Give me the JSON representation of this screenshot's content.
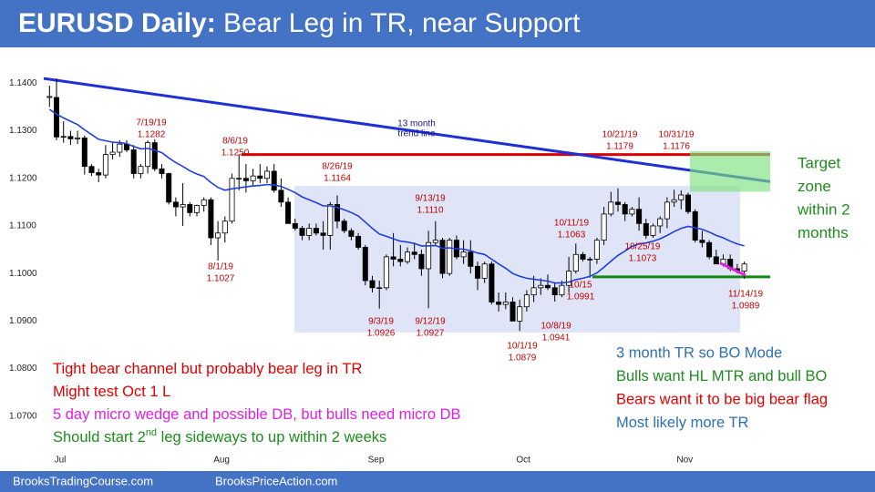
{
  "chart_data": {
    "type": "candlestick",
    "title": {
      "bold": "EURUSD Daily:",
      "rest": " Bear Leg in TR, near Support"
    },
    "footer": [
      "BrooksTradingCourse.com",
      "BrooksPriceAction.com"
    ],
    "categories": [
      null,
      "Jul",
      null,
      null,
      null,
      null,
      null,
      null,
      null,
      null,
      null,
      null,
      null,
      null,
      null,
      null,
      null,
      null,
      null,
      null,
      null,
      null,
      null,
      null,
      "Aug",
      null,
      null,
      null,
      null,
      null,
      null,
      null,
      null,
      null,
      null,
      null,
      null,
      null,
      null,
      null,
      null,
      null,
      null,
      null,
      null,
      null,
      "Sep",
      null,
      null,
      null,
      null,
      null,
      null,
      null,
      null,
      null,
      null,
      null,
      null,
      null,
      null,
      null,
      null,
      null,
      null,
      null,
      null,
      "Oct",
      null,
      null,
      null,
      null,
      null,
      null,
      null,
      null,
      null,
      null,
      null,
      null,
      null,
      null,
      null,
      null,
      null,
      null,
      null,
      null,
      null,
      null,
      "Nov",
      null,
      null,
      null,
      null,
      null,
      null,
      null,
      null,
      null
    ],
    "ohlc": {
      "open": [
        1.137,
        1.137,
        1.1287,
        1.1288,
        1.1283,
        1.1285,
        1.1225,
        1.1212,
        1.1207,
        1.125,
        1.1255,
        1.1272,
        1.126,
        1.121,
        1.1225,
        1.1275,
        1.122,
        1.121,
        1.115,
        1.114,
        1.1145,
        1.1128,
        1.1143,
        1.1155,
        1.1075,
        1.1085,
        1.111,
        1.12,
        1.12,
        1.1195,
        1.1205,
        1.12,
        1.1215,
        1.1175,
        1.115,
        1.1105,
        1.1095,
        1.108,
        1.1095,
        1.1085,
        1.108,
        1.1145,
        1.111,
        1.109,
        1.1078,
        1.1055,
        1.0985,
        1.097,
        1.097,
        1.1035,
        1.103,
        1.1025,
        1.1045,
        1.104,
        1.101,
        1.1065,
        1.107,
        1.1,
        1.107,
        1.1035,
        1.1045,
        1.1015,
        1.099,
        1.102,
        1.094,
        1.0935,
        1.094,
        1.09,
        1.093,
        1.0955,
        1.097,
        1.0975,
        1.097,
        1.0955,
        1.0975,
        1.1005,
        1.104,
        1.103,
        1.103,
        1.107,
        1.1125,
        1.115,
        1.1145,
        1.1125,
        1.1135,
        1.1105,
        1.108,
        1.11,
        1.1115,
        1.115,
        1.1155,
        1.1165,
        1.113,
        1.107,
        1.1065,
        1.1035,
        1.102,
        1.103,
        1.101,
        1.1005
      ],
      "high": [
        1.1395,
        1.141,
        1.132,
        1.13,
        1.13,
        1.129,
        1.123,
        1.122,
        1.127,
        1.1275,
        1.128,
        1.128,
        1.127,
        1.123,
        1.128,
        1.1282,
        1.123,
        1.1212,
        1.116,
        1.119,
        1.115,
        1.1145,
        1.116,
        1.116,
        1.111,
        1.112,
        1.121,
        1.125,
        1.123,
        1.122,
        1.123,
        1.1225,
        1.123,
        1.12,
        1.116,
        1.1115,
        1.11,
        1.1105,
        1.1105,
        1.111,
        1.115,
        1.1164,
        1.1115,
        1.1095,
        1.1085,
        1.106,
        1.0995,
        1.0985,
        1.104,
        1.1085,
        1.106,
        1.1055,
        1.1065,
        1.105,
        1.109,
        1.111,
        1.1075,
        1.1075,
        1.108,
        1.107,
        1.107,
        1.1025,
        1.1025,
        1.1025,
        1.096,
        1.096,
        1.095,
        1.0945,
        1.0965,
        1.0995,
        1.099,
        1.0998,
        1.098,
        1.0985,
        1.1035,
        1.1063,
        1.1045,
        1.1035,
        1.1075,
        1.114,
        1.1172,
        1.1179,
        1.115,
        1.114,
        1.116,
        1.1115,
        1.1105,
        1.112,
        1.116,
        1.1176,
        1.1175,
        1.117,
        1.1135,
        1.109,
        1.107,
        1.105,
        1.104,
        1.104,
        1.102,
        1.1025
      ],
      "low": [
        1.135,
        1.128,
        1.1275,
        1.127,
        1.1272,
        1.1208,
        1.1205,
        1.1192,
        1.12,
        1.124,
        1.1245,
        1.1255,
        1.12,
        1.12,
        1.121,
        1.1215,
        1.12,
        1.1145,
        1.112,
        1.11,
        1.112,
        1.112,
        1.113,
        1.106,
        1.1027,
        1.1065,
        1.1105,
        1.1175,
        1.117,
        1.1185,
        1.119,
        1.119,
        1.117,
        1.114,
        1.111,
        1.109,
        1.107,
        1.107,
        1.108,
        1.105,
        1.105,
        1.1095,
        1.1085,
        1.107,
        1.105,
        1.0975,
        1.096,
        1.0926,
        1.0965,
        1.1015,
        1.1015,
        1.102,
        1.103,
        1.0995,
        1.0927,
        1.106,
        1.099,
        1.0995,
        1.103,
        1.102,
        1.1,
        1.0965,
        1.098,
        1.0935,
        1.092,
        1.0925,
        1.09,
        1.0879,
        1.092,
        1.094,
        1.0955,
        1.0965,
        1.0941,
        1.095,
        1.096,
        1.1,
        1.1025,
        1.0991,
        1.102,
        1.106,
        1.112,
        1.113,
        1.111,
        1.112,
        1.109,
        1.1073,
        1.1075,
        1.1085,
        1.1095,
        1.114,
        1.1135,
        1.1125,
        1.1065,
        1.1055,
        1.103,
        1.102,
        1.1015,
        1.1005,
        1.1,
        1.0989
      ],
      "close": [
        1.1372,
        1.1287,
        1.1288,
        1.1283,
        1.1285,
        1.1225,
        1.1212,
        1.1207,
        1.125,
        1.1255,
        1.1272,
        1.126,
        1.121,
        1.1225,
        1.1275,
        1.122,
        1.121,
        1.115,
        1.114,
        1.1145,
        1.1128,
        1.1143,
        1.1155,
        1.1075,
        1.1085,
        1.111,
        1.12,
        1.12,
        1.1195,
        1.1205,
        1.12,
        1.1215,
        1.1175,
        1.115,
        1.1105,
        1.1095,
        1.108,
        1.1095,
        1.1085,
        1.108,
        1.1145,
        1.111,
        1.109,
        1.1078,
        1.1055,
        1.0985,
        1.097,
        1.097,
        1.1035,
        1.103,
        1.1025,
        1.1045,
        1.104,
        1.101,
        1.1065,
        1.107,
        1.1,
        1.107,
        1.1035,
        1.1045,
        1.1015,
        1.099,
        1.102,
        1.094,
        1.0935,
        1.094,
        1.09,
        1.093,
        1.0955,
        1.097,
        1.0975,
        1.097,
        1.0955,
        1.0975,
        1.1005,
        1.104,
        1.103,
        1.103,
        1.107,
        1.1125,
        1.115,
        1.1145,
        1.1125,
        1.1135,
        1.1105,
        1.108,
        1.11,
        1.1115,
        1.115,
        1.1155,
        1.1165,
        1.113,
        1.107,
        1.1065,
        1.1035,
        1.102,
        1.103,
        1.101,
        1.1005,
        1.102
      ]
    },
    "moving_average": {
      "color": "#1f3fe0",
      "values": [
        1.1345,
        1.1335,
        1.1327,
        1.132,
        1.1313,
        1.1302,
        1.1292,
        1.1282,
        1.1279,
        1.1276,
        1.1275,
        1.1273,
        1.1267,
        1.1262,
        1.1263,
        1.1259,
        1.1254,
        1.1243,
        1.1233,
        1.1225,
        1.1216,
        1.1209,
        1.1204,
        1.1191,
        1.1181,
        1.1175,
        1.1178,
        1.118,
        1.1182,
        1.1184,
        1.1185,
        1.1187,
        1.1186,
        1.1183,
        1.1177,
        1.117,
        1.1161,
        1.1155,
        1.1149,
        1.1142,
        1.1142,
        1.1139,
        1.1134,
        1.1128,
        1.1121,
        1.1108,
        1.1095,
        1.1083,
        1.1078,
        1.1073,
        1.1068,
        1.1066,
        1.1063,
        1.1058,
        1.1058,
        1.1059,
        1.1053,
        1.1054,
        1.1052,
        1.1051,
        1.1048,
        1.1043,
        1.104,
        1.103,
        1.102,
        1.1011,
        1.1,
        1.0994,
        1.099,
        1.0988,
        1.0986,
        1.0984,
        1.098,
        1.098,
        1.0982,
        1.0987,
        1.099,
        1.0994,
        1.1001,
        1.1013,
        1.1026,
        1.1038,
        1.1047,
        1.1057,
        1.1062,
        1.1064,
        1.1068,
        1.1073,
        1.108,
        1.1088,
        1.1095,
        1.1099,
        1.1096,
        1.1093,
        1.1087,
        1.108,
        1.1075,
        1.1068,
        1.1062,
        1.1058
      ]
    },
    "ylim": [
      1.06,
      1.146
    ],
    "yticks": [
      {
        "value": 1.07,
        "label": "1.0700"
      },
      {
        "value": 1.08,
        "label": "1.0800"
      },
      {
        "value": 1.09,
        "label": "1.0900"
      },
      {
        "value": 1.1,
        "label": "1.1000"
      },
      {
        "value": 1.11,
        "label": "1.1100"
      },
      {
        "value": 1.12,
        "label": "1.1200"
      },
      {
        "value": 1.13,
        "label": "1.1300"
      },
      {
        "value": 1.14,
        "label": "1.1400"
      }
    ],
    "trend_line": {
      "label": [
        "13 month",
        "trend line"
      ],
      "values": [
        1.141,
        1.1193
      ],
      "color": "#1f2fd8"
    },
    "resistance": {
      "value": 1.125,
      "color": "#e00000"
    },
    "support": {
      "value": 1.0993,
      "color": "#118a11"
    },
    "wedge_line": {
      "values": [
        1.1022,
        1.0996
      ],
      "color": "#e020e0"
    },
    "trading_range": {
      "values": [
        1.1184,
        1.0876
      ],
      "color": "#c9d3f0"
    },
    "target_zone": {
      "values": [
        1.1257,
        1.1172
      ],
      "color": "#7ee07e",
      "label": [
        "Target",
        "zone",
        "within 2",
        "months"
      ]
    },
    "annotations": [
      {
        "date": "7/19/19",
        "value": 1.1282,
        "label": "1.1282"
      },
      {
        "date": "8/1/19",
        "value": 1.1027,
        "label": "1.1027"
      },
      {
        "date": "8/6/19",
        "value": 1.125,
        "label": "1.1250"
      },
      {
        "date": "8/26/19",
        "value": 1.1164,
        "label": "1.1164"
      },
      {
        "date": "9/3/19",
        "value": 1.0926,
        "label": "1.0926"
      },
      {
        "date": "9/12/19",
        "value": 1.0927,
        "label": "1.0927"
      },
      {
        "date": "9/13/19",
        "value": 1.111,
        "label": "1.1110"
      },
      {
        "date": "10/1/19",
        "value": 1.0879,
        "label": "1.0879"
      },
      {
        "date": "10/8/19",
        "value": 1.0941,
        "label": "1.0941"
      },
      {
        "date": "10/11/19",
        "value": 1.1063,
        "label": "1.1063"
      },
      {
        "date": "10/15",
        "value": 1.0991,
        "label": "1.0991"
      },
      {
        "date": "10/21/19",
        "value": 1.1179,
        "label": "1.1179"
      },
      {
        "date": "10/25/19",
        "value": 1.1073,
        "label": "1.1073"
      },
      {
        "date": "10/31/19",
        "value": 1.1176,
        "label": "1.1176"
      },
      {
        "date": "11/14/19",
        "value": 1.0989,
        "label": "1.0989"
      }
    ],
    "notes_left": [
      {
        "text": "Tight bear channel but probably bear leg in TR",
        "color": "#e00000"
      },
      {
        "text": "Might test Oct 1 L",
        "color": "#e00000"
      },
      {
        "text": "5 day micro wedge and possible DB, but bulls need micro DB",
        "color": "#e020e0"
      },
      {
        "text": "Should start 2",
        "sup": "nd",
        "rest": " leg sideways to up within 2 weeks",
        "color": "#1e8c1e"
      }
    ],
    "notes_right": [
      {
        "text": "3 month TR so BO Mode",
        "color": "#2e6fb8"
      },
      {
        "text": "Bulls want HL MTR and bull BO",
        "color": "#1e8c1e"
      },
      {
        "text": "Bears want it to be big bear flag",
        "color": "#e00000"
      },
      {
        "text": "Most likely more TR",
        "color": "#2e6fb8"
      }
    ]
  }
}
